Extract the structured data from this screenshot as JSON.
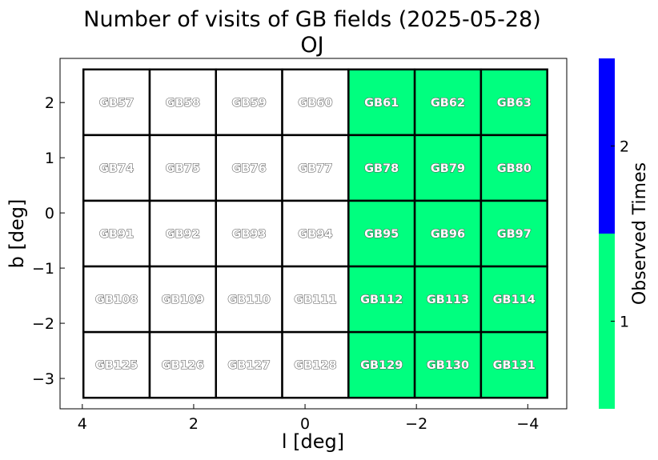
{
  "chart_data": {
    "type": "heatmap",
    "title": "Number of visits of GB fields (2025-05-28)",
    "subtitle": "OJ",
    "xlabel": "l [deg]",
    "ylabel": "b [deg]",
    "xlim": [
      4.4,
      -4.7
    ],
    "ylim": [
      -3.55,
      2.8
    ],
    "xticks": [
      4,
      2,
      0,
      -2,
      -4
    ],
    "xtick_labels": [
      "4",
      "2",
      "0",
      "−2",
      "−4"
    ],
    "yticks": [
      2,
      1,
      0,
      -1,
      -2,
      -3
    ],
    "ytick_labels": [
      "2",
      "1",
      "0",
      "−1",
      "−2",
      "−3"
    ],
    "grid": false,
    "cell_extent": {
      "l_edges": [
        3.98,
        2.79,
        1.6,
        0.41,
        -0.78,
        -1.97,
        -3.16,
        -4.35
      ],
      "b_edges": [
        2.6,
        1.41,
        0.22,
        -0.97,
        -2.16,
        -3.35
      ]
    },
    "rows": [
      [
        {
          "label": "GB57",
          "value": 0
        },
        {
          "label": "GB58",
          "value": 0
        },
        {
          "label": "GB59",
          "value": 0
        },
        {
          "label": "GB60",
          "value": 0
        },
        {
          "label": "GB61",
          "value": 1
        },
        {
          "label": "GB62",
          "value": 1
        },
        {
          "label": "GB63",
          "value": 1
        }
      ],
      [
        {
          "label": "GB74",
          "value": 0
        },
        {
          "label": "GB75",
          "value": 0
        },
        {
          "label": "GB76",
          "value": 0
        },
        {
          "label": "GB77",
          "value": 0
        },
        {
          "label": "GB78",
          "value": 1
        },
        {
          "label": "GB79",
          "value": 1
        },
        {
          "label": "GB80",
          "value": 1
        }
      ],
      [
        {
          "label": "GB91",
          "value": 0
        },
        {
          "label": "GB92",
          "value": 0
        },
        {
          "label": "GB93",
          "value": 0
        },
        {
          "label": "GB94",
          "value": 0
        },
        {
          "label": "GB95",
          "value": 1
        },
        {
          "label": "GB96",
          "value": 1
        },
        {
          "label": "GB97",
          "value": 1
        }
      ],
      [
        {
          "label": "GB108",
          "value": 0
        },
        {
          "label": "GB109",
          "value": 0
        },
        {
          "label": "GB110",
          "value": 0
        },
        {
          "label": "GB111",
          "value": 0
        },
        {
          "label": "GB112",
          "value": 1
        },
        {
          "label": "GB113",
          "value": 1
        },
        {
          "label": "GB114",
          "value": 1
        }
      ],
      [
        {
          "label": "GB125",
          "value": 0
        },
        {
          "label": "GB126",
          "value": 0
        },
        {
          "label": "GB127",
          "value": 0
        },
        {
          "label": "GB128",
          "value": 0
        },
        {
          "label": "GB129",
          "value": 1
        },
        {
          "label": "GB130",
          "value": 1
        },
        {
          "label": "GB131",
          "value": 1
        }
      ]
    ],
    "colorbar": {
      "label": "Observed Times",
      "range": [
        0.5,
        2.5
      ],
      "ticks": [
        1,
        2
      ],
      "tick_labels": [
        "1",
        "2"
      ],
      "levels": [
        {
          "value": 1,
          "color": "#00ff7f"
        },
        {
          "value": 2,
          "color": "#0000ff"
        }
      ]
    },
    "colors": {
      "unobserved": "#ffffff",
      "cell_edge": "#000000",
      "label_fill": "#ffffff",
      "label_stroke": "#555555"
    }
  }
}
